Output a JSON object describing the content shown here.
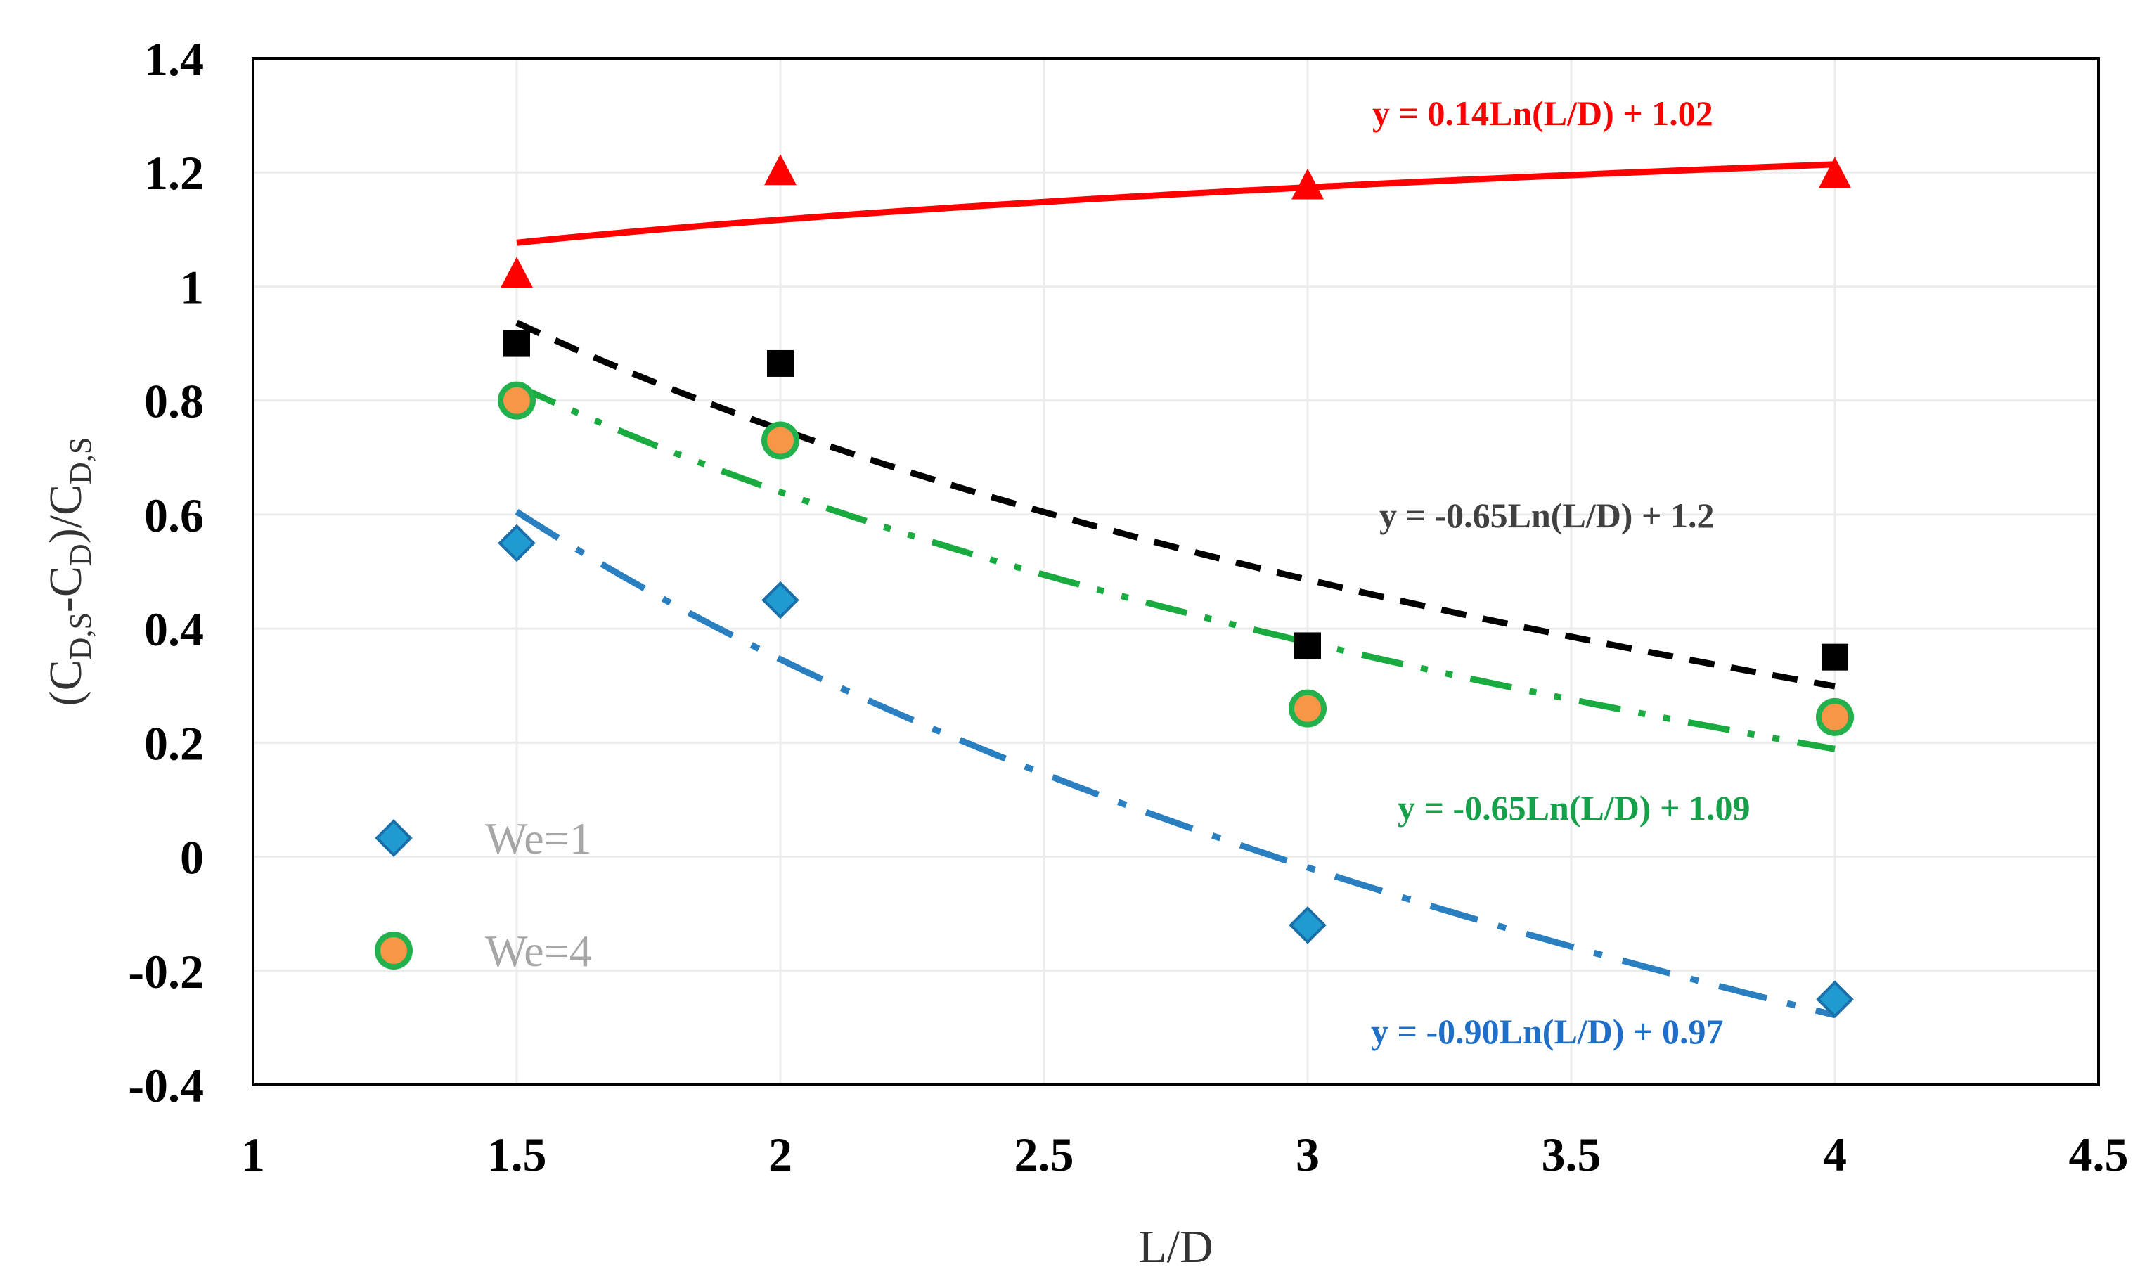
{
  "chart_data": {
    "type": "scatter",
    "xlabel": "L/D",
    "ylabel": {
      "parts": [
        {
          "t": "(C",
          "sub": false
        },
        {
          "t": "D,S",
          "sub": true
        },
        {
          "t": "-C",
          "sub": false
        },
        {
          "t": "D",
          "sub": true
        },
        {
          "t": ")/C",
          "sub": false
        },
        {
          "t": "D,S",
          "sub": true
        }
      ]
    },
    "xlim": [
      1,
      4.5
    ],
    "ylim": [
      -0.4,
      1.4
    ],
    "xticks": [
      1,
      1.5,
      2,
      2.5,
      3,
      3.5,
      4,
      4.5
    ],
    "xtick_labels": [
      "1",
      "1.5",
      "2",
      "2.5",
      "3",
      "3.5",
      "4",
      "4.5"
    ],
    "yticks": [
      -0.4,
      -0.2,
      0,
      0.2,
      0.4,
      0.6,
      0.8,
      1,
      1.2,
      1.4
    ],
    "ytick_labels": [
      "-0.4",
      "-0.2",
      "0",
      "0.2",
      "0.4",
      "0.6",
      "0.8",
      "1",
      "1.2",
      "1.4"
    ],
    "grid": true,
    "series": [
      {
        "name": "We=1",
        "marker": "diamond",
        "color": "#1f9bd1",
        "x": [
          1.5,
          2,
          3,
          4
        ],
        "y": [
          0.55,
          0.45,
          -0.12,
          -0.25
        ],
        "fit": {
          "a": -0.9,
          "b": 0.97,
          "color": "#2a7fc1",
          "dash": "dashdot",
          "equation": "y = -0.90Ln(L/D) + 0.97",
          "label_color": "#1f6fc8"
        }
      },
      {
        "name": "We=4",
        "marker": "circle",
        "color": "#f79646",
        "edge_color": "#22b14c",
        "x": [
          1.5,
          2,
          3,
          4
        ],
        "y": [
          0.8,
          0.73,
          0.26,
          0.245
        ],
        "fit": {
          "a": -0.65,
          "b": 1.09,
          "color": "#1aab40",
          "dash": "dashdotdot",
          "equation": "y = -0.65Ln(L/D) + 1.09",
          "label_color": "#16a04a"
        }
      },
      {
        "name": "",
        "marker": "square",
        "color": "#000000",
        "x": [
          1.5,
          2,
          3,
          4
        ],
        "y": [
          0.9,
          0.865,
          0.37,
          0.35
        ],
        "fit": {
          "a": -0.65,
          "b": 1.2,
          "color": "#000000",
          "dash": "dash",
          "equation": "y = -0.65Ln(L/D) + 1.2",
          "label_color": "#404040"
        }
      },
      {
        "name": "",
        "marker": "triangle",
        "color": "#ff0000",
        "x": [
          1.5,
          2,
          3,
          4
        ],
        "y": [
          1.02,
          1.2,
          1.175,
          1.195
        ],
        "fit": {
          "a": 0.14,
          "b": 1.02,
          "color": "#ff0000",
          "dash": "solid",
          "equation": "y = 0.14Ln(L/D) + 1.02",
          "label_color": "#ff0000"
        }
      }
    ],
    "legend": {
      "placement": "lower-left",
      "entries": [
        "We=1",
        "We=4"
      ]
    }
  }
}
